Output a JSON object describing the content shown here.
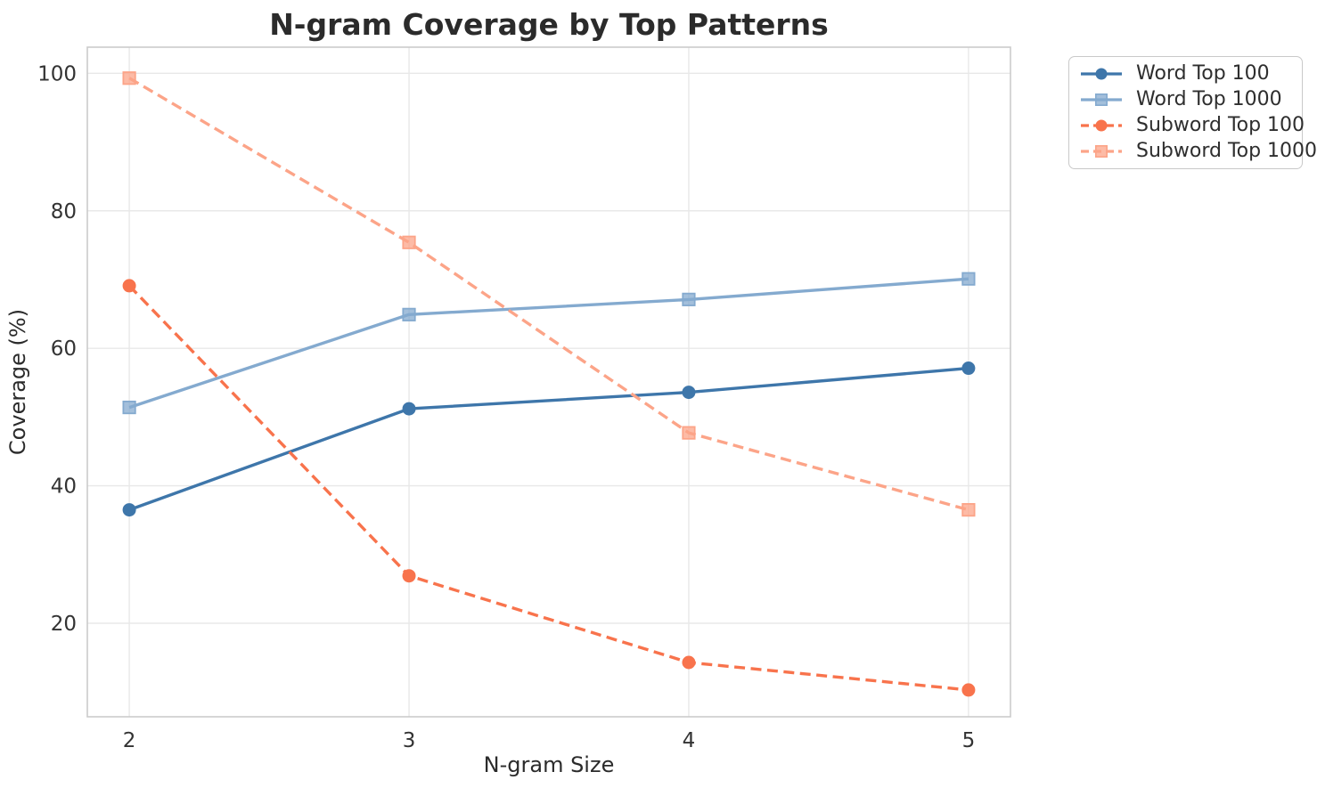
{
  "chart_data": {
    "type": "line",
    "title": "N-gram Coverage by Top Patterns",
    "xlabel": "N-gram Size",
    "ylabel": "Coverage (%)",
    "x": [
      2,
      3,
      4,
      5
    ],
    "x_tick_labels": [
      "2",
      "3",
      "4",
      "5"
    ],
    "y_tick_values": [
      20,
      40,
      60,
      80,
      100
    ],
    "y_tick_labels": [
      "20",
      "40",
      "60",
      "80",
      "100"
    ],
    "xlim": [
      1.85,
      5.15
    ],
    "ylim": [
      6.4,
      103.8
    ],
    "grid": "on",
    "legend_position": "outside-upper-right",
    "series": [
      {
        "name": "Word Top 100",
        "values": [
          36.5,
          51.2,
          53.6,
          57.1
        ],
        "color": "#3e76aa",
        "line_style": "solid",
        "marker": "circle"
      },
      {
        "name": "Word Top 1000",
        "values": [
          51.4,
          64.9,
          67.1,
          70.1
        ],
        "color": "#84aacf",
        "line_style": "solid",
        "marker": "square"
      },
      {
        "name": "Subword Top 100",
        "values": [
          69.1,
          26.9,
          14.3,
          10.3
        ],
        "color": "#f8734c",
        "line_style": "dashed",
        "marker": "circle"
      },
      {
        "name": "Subword Top 1000",
        "values": [
          99.3,
          75.4,
          47.7,
          36.5
        ],
        "color": "#fca488",
        "line_style": "dashed",
        "marker": "square"
      }
    ],
    "styles": {
      "grid_color": "#e8e8e8",
      "spine_color": "#cbcbcb",
      "title_color": "#2b2b2b",
      "tick_color": "#333333",
      "background": "#ffffff"
    }
  }
}
